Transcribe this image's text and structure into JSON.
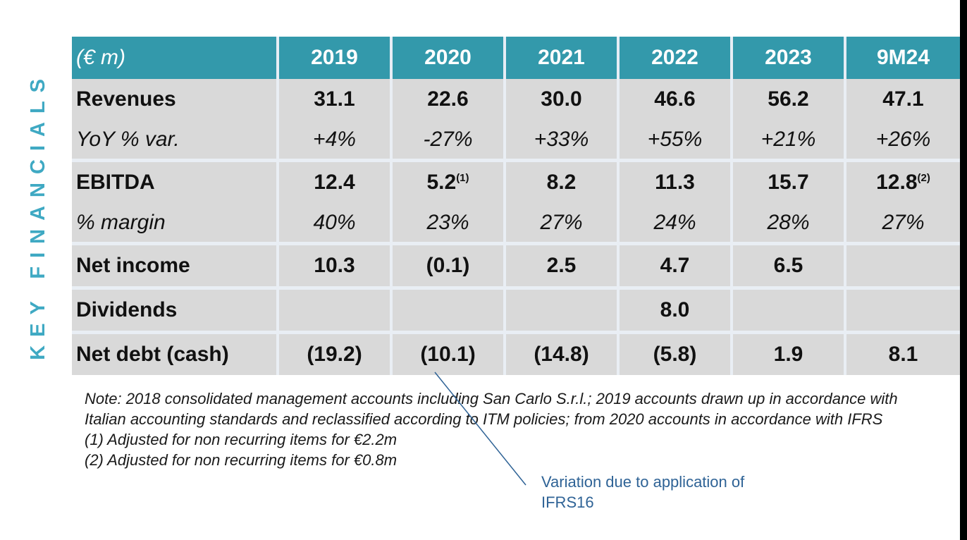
{
  "side_title": "KEY FINANCIALS",
  "table": {
    "unit_label": "(€ m)",
    "years": [
      "2019",
      "2020",
      "2021",
      "2022",
      "2023",
      "9M24"
    ],
    "rows": {
      "revenues": {
        "label": "Revenues",
        "values": [
          "31.1",
          "22.6",
          "30.0",
          "46.6",
          "56.2",
          "47.1"
        ]
      },
      "yoy": {
        "label": "YoY % var.",
        "values": [
          "+4%",
          "-27%",
          "+33%",
          "+55%",
          "+21%",
          "+26%"
        ]
      },
      "ebitda": {
        "label": "EBITDA",
        "values": [
          "12.4",
          "5.2",
          "8.2",
          "11.3",
          "15.7",
          "12.8"
        ],
        "footnote_2020": "(1)",
        "footnote_9m24": "(2)"
      },
      "margin": {
        "label": "% margin",
        "values": [
          "40%",
          "23%",
          "27%",
          "24%",
          "28%",
          "27%"
        ]
      },
      "net_income": {
        "label": "Net income",
        "values": [
          "10.3",
          "(0.1)",
          "2.5",
          "4.7",
          "6.5",
          ""
        ]
      },
      "dividends": {
        "label": "Dividends",
        "values": [
          "",
          "",
          "",
          "8.0",
          "",
          ""
        ]
      },
      "net_debt": {
        "label": "Net debt (cash)",
        "values": [
          "(19.2)",
          "(10.1)",
          "(14.8)",
          "(5.8)",
          "1.9",
          "8.1"
        ]
      }
    }
  },
  "notes": {
    "main": "Note: 2018 consolidated management accounts including San Carlo S.r.l.; 2019 accounts drawn up in accordance with Italian accounting standards and reclassified according to ITM policies; from 2020 accounts in accordance with IFRS",
    "fn1": "(1) Adjusted for non recurring items for €2.2m",
    "fn2": "(2) Adjusted for non recurring items for €0.8m"
  },
  "callout": "Variation due to application of IFRS16",
  "colors": {
    "header_bg": "#3399ab",
    "cell_bg": "#d9d9d9",
    "side_title": "#3fa9c3",
    "callout": "#2f6396"
  }
}
